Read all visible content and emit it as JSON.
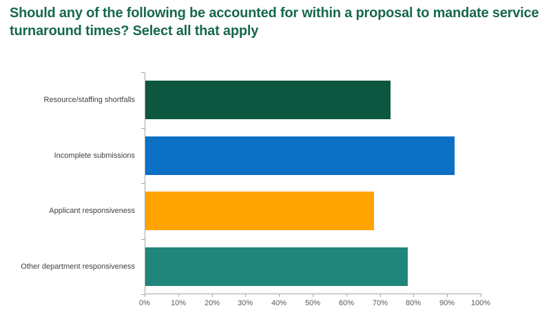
{
  "page": {
    "background_color": "#ffffff"
  },
  "chart_data": {
    "type": "bar",
    "orientation": "horizontal",
    "title": "Should any of the following be accounted for within a proposal to mandate service turnaround times? Select all that apply",
    "title_color": "#17684d",
    "categories": [
      "Resource/staffing shortfalls",
      "Incomplete submissions",
      "Applicant responsiveness",
      "Other department responsiveness"
    ],
    "values": [
      73,
      92,
      68,
      78
    ],
    "value_unit": "%",
    "bar_colors": [
      "#0d5740",
      "#0c70c4",
      "#ffa400",
      "#20857a"
    ],
    "xlabel": "",
    "ylabel": "",
    "xlim": [
      0,
      100
    ],
    "x_ticks": [
      "0%",
      "10%",
      "20%",
      "30%",
      "40%",
      "50%",
      "60%",
      "70%",
      "80%",
      "90%",
      "100%"
    ],
    "grid": false,
    "legend": false,
    "axis_color": "#a6a6a6",
    "category_label_color": "#404040",
    "tick_label_color": "#595959"
  }
}
